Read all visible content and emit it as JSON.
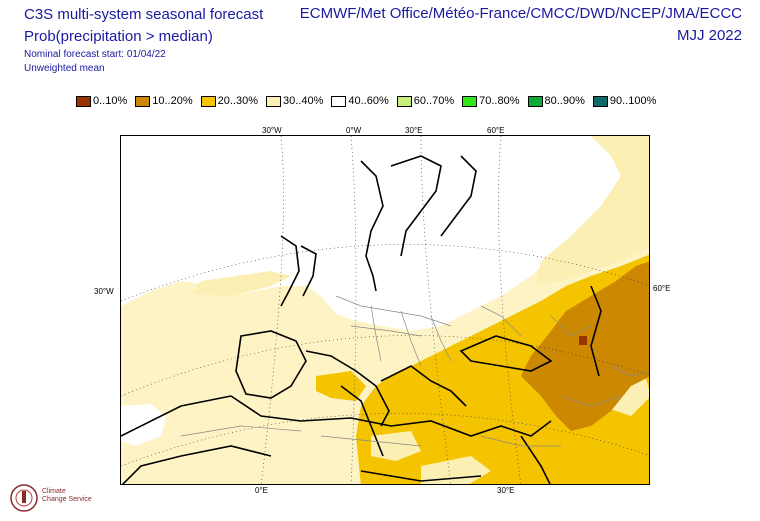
{
  "header": {
    "title_line1": "C3S multi-system seasonal forecast",
    "title_line2": "Prob(precipitation > median)",
    "nominal_start": "Nominal forecast start: 01/04/22",
    "weighting": "Unweighted mean",
    "centres": "ECMWF/Met Office/Météo-France/CMCC/DWD/NCEP/JMA/ECCC",
    "season": "MJJ 2022"
  },
  "legend": [
    {
      "label": "0..10%",
      "color": "#993300"
    },
    {
      "label": "10..20%",
      "color": "#cc8800"
    },
    {
      "label": "20..30%",
      "color": "#f5c400"
    },
    {
      "label": "30..40%",
      "color": "#fcefb3"
    },
    {
      "label": "40..60%",
      "color": "#ffffff"
    },
    {
      "label": "60..70%",
      "color": "#c6f07a"
    },
    {
      "label": "70..80%",
      "color": "#33e619"
    },
    {
      "label": "80..90%",
      "color": "#11a83a"
    },
    {
      "label": "90..100%",
      "color": "#0f6b6b"
    }
  ],
  "map": {
    "graticule_labels": {
      "top_30w": "30°W",
      "top_0": "0°W",
      "top_30e": "30°E",
      "top_60e": "60°E",
      "left_30w": "30°W",
      "right_60e": "60°E",
      "bottom_0e": "0°E",
      "bottom_30e": "30°E"
    }
  },
  "logo": {
    "line1": "Climate",
    "line2": "Change Service"
  }
}
